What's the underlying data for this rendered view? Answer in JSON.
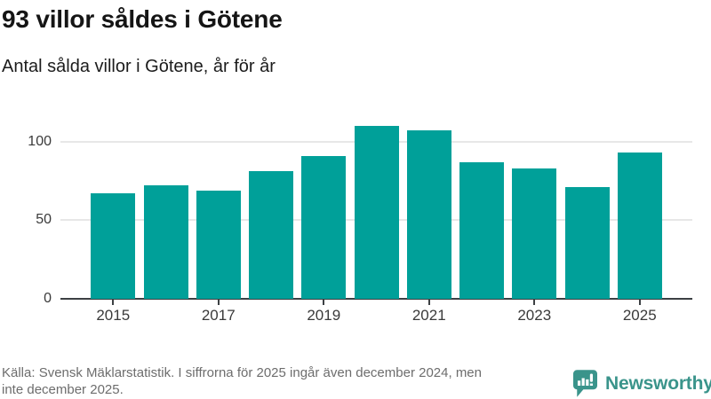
{
  "title": "93 villor såldes i Götene",
  "subtitle": "Antal sålda villor i Götene, år för år",
  "footer": {
    "line1": "Källa: Svensk Mäklarstatistik. I siffrorna för 2025 ingår även december 2024, men",
    "line2": "inte december 2025.",
    "brand": "Newsworthy"
  },
  "colors": {
    "bar": "#00a099",
    "brand_teal": "#3a948b",
    "gridline": "#e7e7e7",
    "axis": "#3c4043",
    "text_dark": "#1c1c1c",
    "text_muted": "#6d6d6d"
  },
  "chart_data": {
    "type": "bar",
    "title": "93 villor såldes i Götene",
    "subtitle": "Antal sålda villor i Götene, år för år",
    "categories": [
      2015,
      2016,
      2017,
      2018,
      2019,
      2020,
      2021,
      2022,
      2023,
      2024,
      2025
    ],
    "values": [
      67,
      72,
      69,
      81,
      91,
      110,
      107,
      87,
      83,
      71,
      93
    ],
    "series_name": "Antal sålda villor",
    "xlabel": "",
    "ylabel": "",
    "y_ticks": [
      0,
      50,
      100
    ],
    "x_tick_labels": [
      "2015",
      "2017",
      "2019",
      "2021",
      "2023",
      "2025"
    ],
    "ylim": [
      0,
      111
    ],
    "grid": "horizontal",
    "legend": "none",
    "bar_color": "#00a099"
  }
}
